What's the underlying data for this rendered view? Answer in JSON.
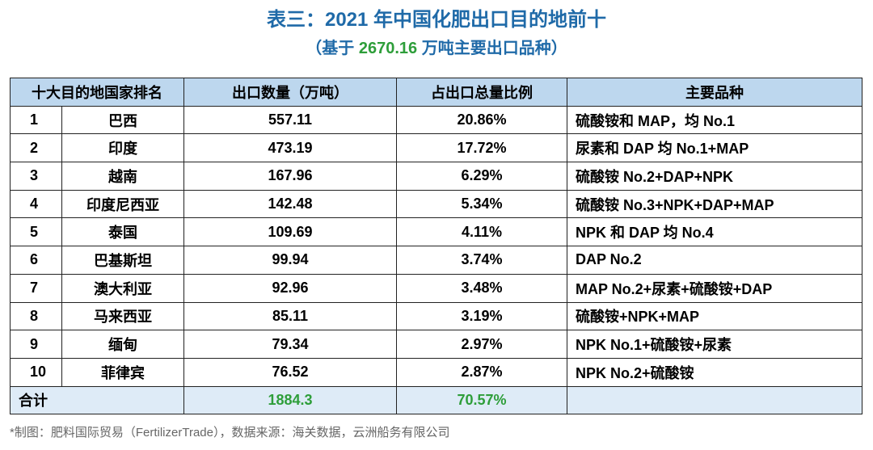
{
  "title": "表三：2021 年中国化肥出口目的地前十",
  "subtitle": {
    "prefix": "（基于 ",
    "value": "2670.16",
    "suffix": " 万吨主要出口品种）"
  },
  "table": {
    "headers": [
      "十大目的地国家排名",
      "出口数量（万吨）",
      "占出口总量比例",
      "主要品种"
    ],
    "rows": [
      {
        "rank": "1",
        "country": "巴西",
        "qty": "557.11",
        "pct": "20.86%",
        "types": "硫酸铵和 MAP，均 No.1"
      },
      {
        "rank": "2",
        "country": "印度",
        "qty": "473.19",
        "pct": "17.72%",
        "types": "尿素和 DAP 均 No.1+MAP"
      },
      {
        "rank": "3",
        "country": "越南",
        "qty": "167.96",
        "pct": "6.29%",
        "types": "硫酸铵 No.2+DAP+NPK"
      },
      {
        "rank": "4",
        "country": "印度尼西亚",
        "qty": "142.48",
        "pct": "5.34%",
        "types": "硫酸铵 No.3+NPK+DAP+MAP"
      },
      {
        "rank": "5",
        "country": "泰国",
        "qty": "109.69",
        "pct": "4.11%",
        "types": "NPK 和 DAP 均 No.4"
      },
      {
        "rank": "6",
        "country": "巴基斯坦",
        "qty": "99.94",
        "pct": "3.74%",
        "types": "DAP No.2"
      },
      {
        "rank": "7",
        "country": "澳大利亚",
        "qty": "92.96",
        "pct": "3.48%",
        "types": "MAP No.2+尿素+硫酸铵+DAP"
      },
      {
        "rank": "8",
        "country": "马来西亚",
        "qty": "85.11",
        "pct": "3.19%",
        "types": "硫酸铵+NPK+MAP"
      },
      {
        "rank": "9",
        "country": "缅甸",
        "qty": "79.34",
        "pct": "2.97%",
        "types": "NPK No.1+硫酸铵+尿素"
      },
      {
        "rank": "10",
        "country": "菲律宾",
        "qty": "76.52",
        "pct": "2.87%",
        "types": "NPK No.2+硫酸铵"
      }
    ],
    "total": {
      "label": "合计",
      "qty": "1884.3",
      "pct": "70.57%"
    }
  },
  "footer": "*制图：肥料国际贸易（FertilizerTrade），数据来源：海关数据，云洲船务有限公司"
}
